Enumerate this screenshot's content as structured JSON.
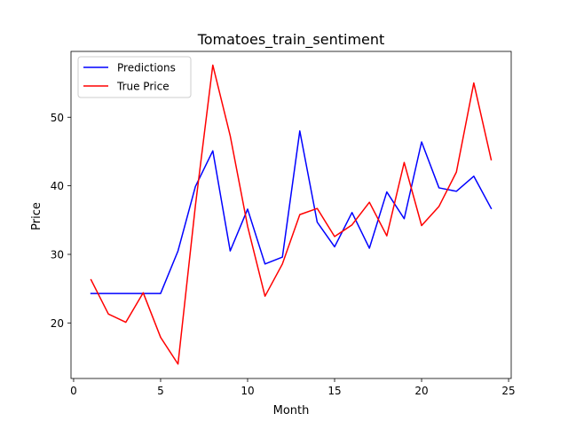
{
  "chart_data": {
    "type": "line",
    "title": "Tomatoes_train_sentiment",
    "xlabel": "Month",
    "ylabel": "Price",
    "xlim": [
      -0.15,
      25.15
    ],
    "ylim": [
      11.9,
      59.6
    ],
    "xticks": [
      0,
      5,
      10,
      15,
      20,
      25
    ],
    "yticks": [
      20,
      30,
      40,
      50
    ],
    "grid": false,
    "legend_position": "top-left",
    "x": [
      1,
      2,
      3,
      4,
      5,
      6,
      7,
      8,
      9,
      10,
      11,
      12,
      13,
      14,
      15,
      16,
      17,
      18,
      19,
      20,
      21,
      22,
      23,
      24
    ],
    "series": [
      {
        "name": "Predictions",
        "color": "#0000ff",
        "values": [
          24.3,
          24.3,
          24.3,
          24.3,
          24.3,
          30.5,
          39.9,
          45.1,
          30.5,
          36.6,
          28.6,
          29.6,
          48.0,
          34.7,
          31.1,
          36.1,
          30.9,
          39.1,
          35.2,
          46.4,
          39.7,
          39.2,
          41.4,
          36.7
        ]
      },
      {
        "name": "True Price",
        "color": "#ff0000",
        "values": [
          26.3,
          21.3,
          20.1,
          24.4,
          17.9,
          14.0,
          37.1,
          57.6,
          47.3,
          34.1,
          23.9,
          28.6,
          35.8,
          36.7,
          32.6,
          34.3,
          37.6,
          32.7,
          43.4,
          34.2,
          37.0,
          42.0,
          55.0,
          43.8
        ]
      }
    ]
  }
}
